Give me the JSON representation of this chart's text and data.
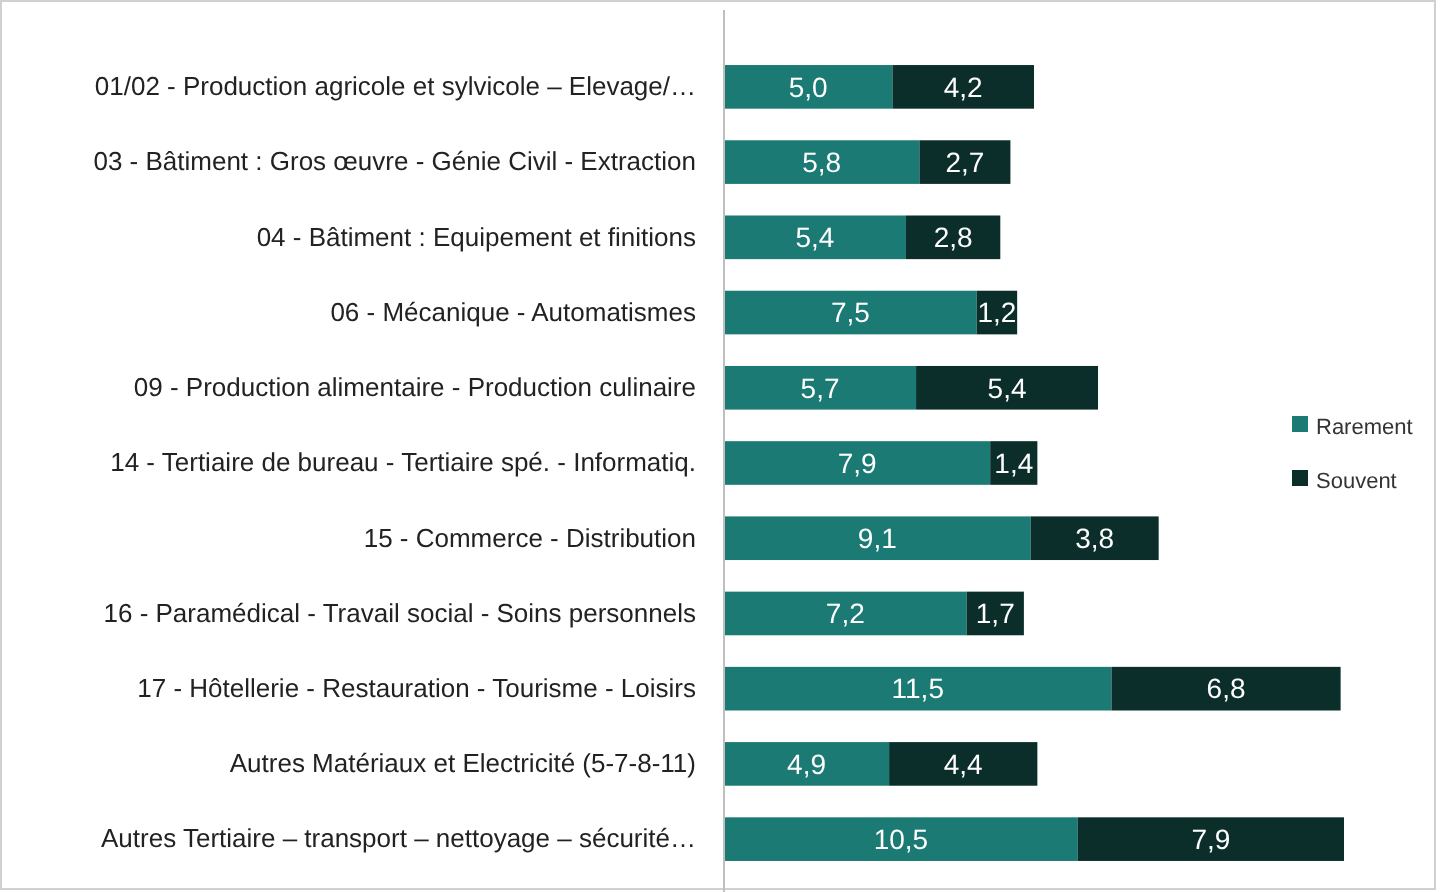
{
  "chart_data": {
    "type": "bar",
    "orientation": "horizontal",
    "stacked": true,
    "legend": "right",
    "tick_labels": "y",
    "categories": [
      "01/02 - Production agricole et sylvicole – Elevage/…",
      "03 - Bâtiment : Gros œuvre - Génie Civil - Extraction",
      "04 - Bâtiment : Equipement et finitions",
      "06 - Mécanique - Automatismes",
      "09 - Production alimentaire - Production culinaire",
      "14 - Tertiaire de bureau - Tertiaire spé. - Informatiq.",
      "15 - Commerce - Distribution",
      "16 - Paramédical - Travail social - Soins personnels",
      "17 - Hôtellerie - Restauration - Tourisme - Loisirs",
      "Autres Matériaux et Electricité (5-7-8-11)",
      "Autres Tertiaire – transport – nettoyage – sécurité…"
    ],
    "series": [
      {
        "name": "Rarement",
        "color": "#1b7a73",
        "values": [
          5.0,
          5.8,
          5.4,
          7.5,
          5.7,
          7.9,
          9.1,
          7.2,
          11.5,
          4.9,
          10.5
        ],
        "value_labels": [
          "5,0",
          "5,8",
          "5,4",
          "7,5",
          "5,7",
          "7,9",
          "9,1",
          "7,2",
          "11,5",
          "4,9",
          "10,5"
        ]
      },
      {
        "name": "Souvent",
        "color": "#0b2e2b",
        "values": [
          4.2,
          2.7,
          2.8,
          1.2,
          5.4,
          1.4,
          3.8,
          1.7,
          6.8,
          4.4,
          7.9
        ],
        "value_labels": [
          "4,2",
          "2,7",
          "2,8",
          "1,2",
          "5,4",
          "1,4",
          "3,8",
          "1,7",
          "6,8",
          "4,4",
          "7,9"
        ]
      }
    ]
  }
}
